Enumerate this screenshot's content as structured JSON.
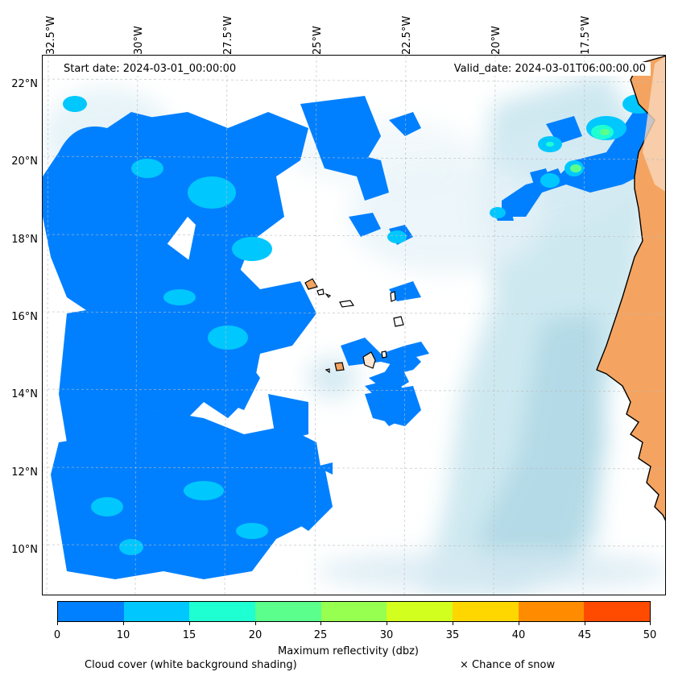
{
  "header": {
    "start_date": "Start date: 2024-03-01_00:00:00",
    "valid_date": "Valid_date: 2024-03-01T06:00:00.00"
  },
  "longitude_labels": [
    "32.5°W",
    "30°W",
    "27.5°W",
    "25°W",
    "22.5°W",
    "20°W",
    "17.5°W"
  ],
  "latitude_labels": [
    "22°N",
    "20°N",
    "18°N",
    "16°N",
    "14°N",
    "12°N",
    "10°N"
  ],
  "colorbar": {
    "title": "Maximum reflectivity (dbz)",
    "ticks": [
      "0",
      "10",
      "15",
      "20",
      "25",
      "30",
      "35",
      "40",
      "45",
      "50"
    ],
    "colors": [
      "#0080ff",
      "#00c8ff",
      "#1effd2",
      "#5aff8c",
      "#96ff50",
      "#d2ff1e",
      "#ffd700",
      "#ff8c00",
      "#ff4b00"
    ]
  },
  "captions": {
    "cloud_cover": "Cloud cover (white background shading)",
    "snow": "× Chance of snow"
  },
  "map_colors": {
    "land": "#f4a460",
    "ocean_haze": "#add8e6",
    "coastline": "#000000"
  }
}
